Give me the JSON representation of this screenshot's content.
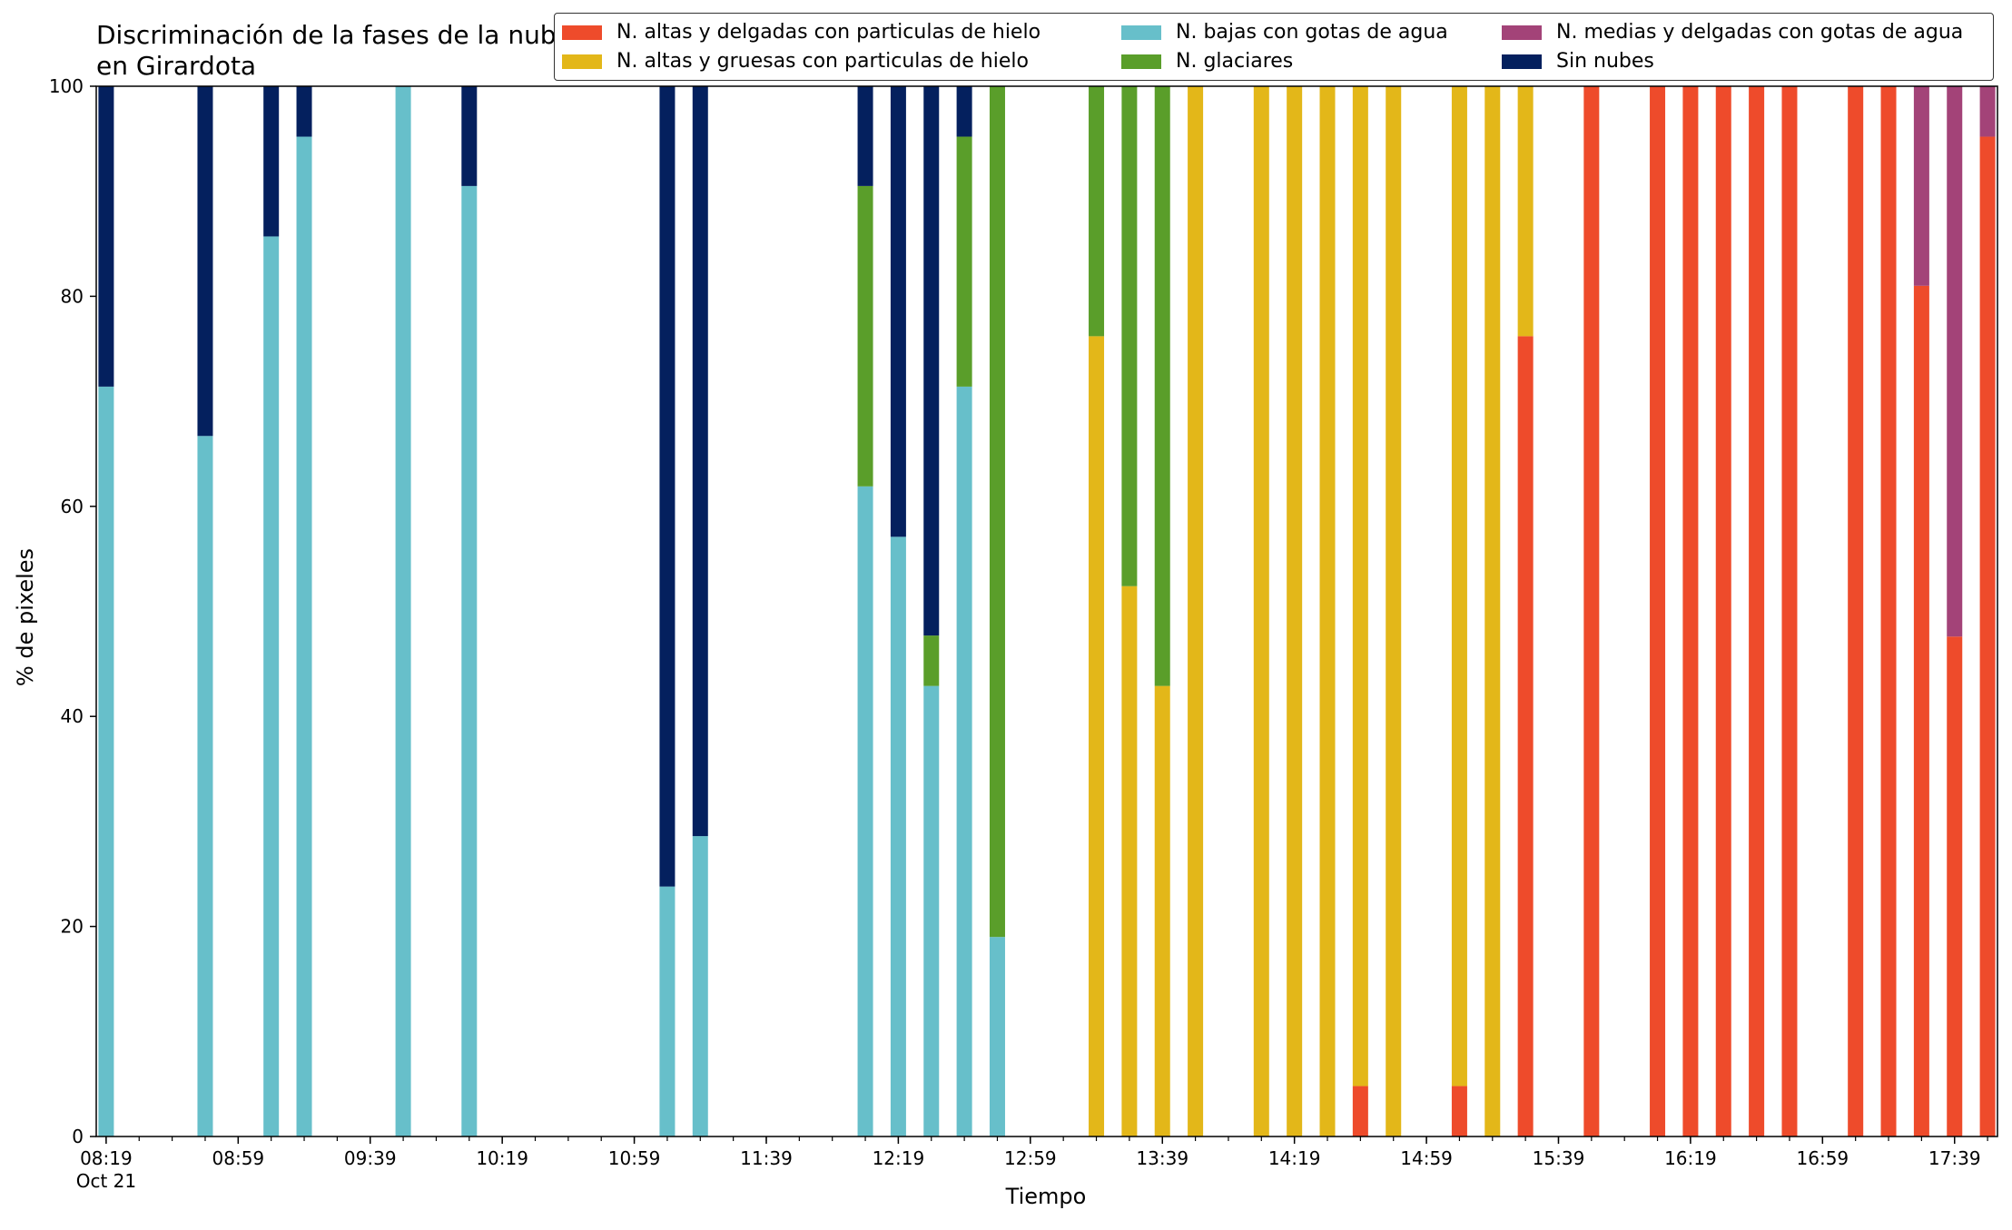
{
  "chart_data": {
    "type": "bar",
    "stacked": true,
    "title": "Discriminación de la fases de la nube en Girardota",
    "xlabel": "Tiempo",
    "ylabel": "% de pixeles",
    "ylim": [
      0,
      100
    ],
    "yticks": [
      0,
      20,
      40,
      60,
      80,
      100
    ],
    "xticks": [
      {
        "time": "08:19",
        "label": "08:19",
        "sublabel": "Oct 21"
      },
      {
        "time": "08:59",
        "label": "08:59"
      },
      {
        "time": "09:39",
        "label": "09:39"
      },
      {
        "time": "10:19",
        "label": "10:19"
      },
      {
        "time": "10:59",
        "label": "10:59"
      },
      {
        "time": "11:39",
        "label": "11:39"
      },
      {
        "time": "12:19",
        "label": "12:19"
      },
      {
        "time": "12:59",
        "label": "12:59"
      },
      {
        "time": "13:39",
        "label": "13:39"
      },
      {
        "time": "14:19",
        "label": "14:19"
      },
      {
        "time": "14:59",
        "label": "14:59"
      },
      {
        "time": "15:39",
        "label": "15:39"
      },
      {
        "time": "16:19",
        "label": "16:19"
      },
      {
        "time": "16:59",
        "label": "16:59"
      },
      {
        "time": "17:39",
        "label": "17:39"
      }
    ],
    "x_range": [
      "08:16",
      "17:52"
    ],
    "grid": false,
    "legend_position": "top-right",
    "series": [
      {
        "name": "N. altas y delgadas con particulas de hielo",
        "color": "#ee4b2b"
      },
      {
        "name": "N. altas y gruesas con particulas de hielo",
        "color": "#e3b719"
      },
      {
        "name": "N. bajas con gotas de agua",
        "color": "#67bfca"
      },
      {
        "name": "N. glaciares",
        "color": "#5a9e2a"
      },
      {
        "name": "N. medias y delgadas con gotas de agua",
        "color": "#a34378"
      },
      {
        "name": "Sin nubes",
        "color": "#04205e"
      }
    ],
    "bars": [
      {
        "time": "08:19",
        "values": [
          0,
          0,
          71.4,
          0,
          0,
          28.6
        ]
      },
      {
        "time": "08:49",
        "values": [
          0,
          0,
          66.7,
          0,
          0,
          33.3
        ]
      },
      {
        "time": "09:09",
        "values": [
          0,
          0,
          85.7,
          0,
          0,
          14.3
        ]
      },
      {
        "time": "09:19",
        "values": [
          0,
          0,
          95.2,
          0,
          0,
          4.8
        ]
      },
      {
        "time": "09:49",
        "values": [
          0,
          0,
          100,
          0,
          0,
          0
        ]
      },
      {
        "time": "10:09",
        "values": [
          0,
          0,
          90.5,
          0,
          0,
          9.5
        ]
      },
      {
        "time": "11:09",
        "values": [
          0,
          0,
          23.8,
          0,
          0,
          76.2
        ]
      },
      {
        "time": "11:19",
        "values": [
          0,
          0,
          28.6,
          0,
          0,
          71.4
        ]
      },
      {
        "time": "12:09",
        "values": [
          0,
          0,
          61.9,
          28.6,
          0,
          9.5
        ]
      },
      {
        "time": "12:19",
        "values": [
          0,
          0,
          57.1,
          0,
          0,
          42.9
        ]
      },
      {
        "time": "12:29",
        "values": [
          0,
          0,
          42.9,
          4.8,
          0,
          52.3
        ]
      },
      {
        "time": "12:39",
        "values": [
          0,
          0,
          71.4,
          23.8,
          0,
          4.8
        ]
      },
      {
        "time": "12:49",
        "values": [
          0,
          0,
          19.0,
          81.0,
          0,
          0
        ]
      },
      {
        "time": "13:19",
        "values": [
          0,
          76.2,
          0,
          23.8,
          0,
          0
        ]
      },
      {
        "time": "13:29",
        "values": [
          0,
          52.4,
          0,
          47.6,
          0,
          0
        ]
      },
      {
        "time": "13:39",
        "values": [
          0,
          42.9,
          0,
          57.1,
          0,
          0
        ]
      },
      {
        "time": "13:49",
        "values": [
          0,
          100,
          0,
          0,
          0,
          0
        ]
      },
      {
        "time": "14:09",
        "values": [
          0,
          100,
          0,
          0,
          0,
          0
        ]
      },
      {
        "time": "14:19",
        "values": [
          0,
          100,
          0,
          0,
          0,
          0
        ]
      },
      {
        "time": "14:29",
        "values": [
          0,
          100,
          0,
          0,
          0,
          0
        ]
      },
      {
        "time": "14:39",
        "values": [
          4.8,
          95.2,
          0,
          0,
          0,
          0
        ]
      },
      {
        "time": "14:49",
        "values": [
          0,
          100,
          0,
          0,
          0,
          0
        ]
      },
      {
        "time": "15:09",
        "values": [
          4.8,
          95.2,
          0,
          0,
          0,
          0
        ]
      },
      {
        "time": "15:19",
        "values": [
          0,
          100,
          0,
          0,
          0,
          0
        ]
      },
      {
        "time": "15:29",
        "values": [
          76.2,
          23.8,
          0,
          0,
          0,
          0
        ]
      },
      {
        "time": "15:49",
        "values": [
          100,
          0,
          0,
          0,
          0,
          0
        ]
      },
      {
        "time": "16:09",
        "values": [
          100,
          0,
          0,
          0,
          0,
          0
        ]
      },
      {
        "time": "16:19",
        "values": [
          100,
          0,
          0,
          0,
          0,
          0
        ]
      },
      {
        "time": "16:29",
        "values": [
          100,
          0,
          0,
          0,
          0,
          0
        ]
      },
      {
        "time": "16:39",
        "values": [
          100,
          0,
          0,
          0,
          0,
          0
        ]
      },
      {
        "time": "16:49",
        "values": [
          100,
          0,
          0,
          0,
          0,
          0
        ]
      },
      {
        "time": "17:09",
        "values": [
          100,
          0,
          0,
          0,
          0,
          0
        ]
      },
      {
        "time": "17:19",
        "values": [
          100,
          0,
          0,
          0,
          0,
          0
        ]
      },
      {
        "time": "17:29",
        "values": [
          81.0,
          0,
          0,
          0,
          19.0,
          0
        ]
      },
      {
        "time": "17:39",
        "values": [
          47.6,
          0,
          0,
          0,
          52.4,
          0
        ]
      },
      {
        "time": "17:49",
        "values": [
          95.2,
          0,
          0,
          0,
          4.8,
          0
        ]
      }
    ]
  }
}
